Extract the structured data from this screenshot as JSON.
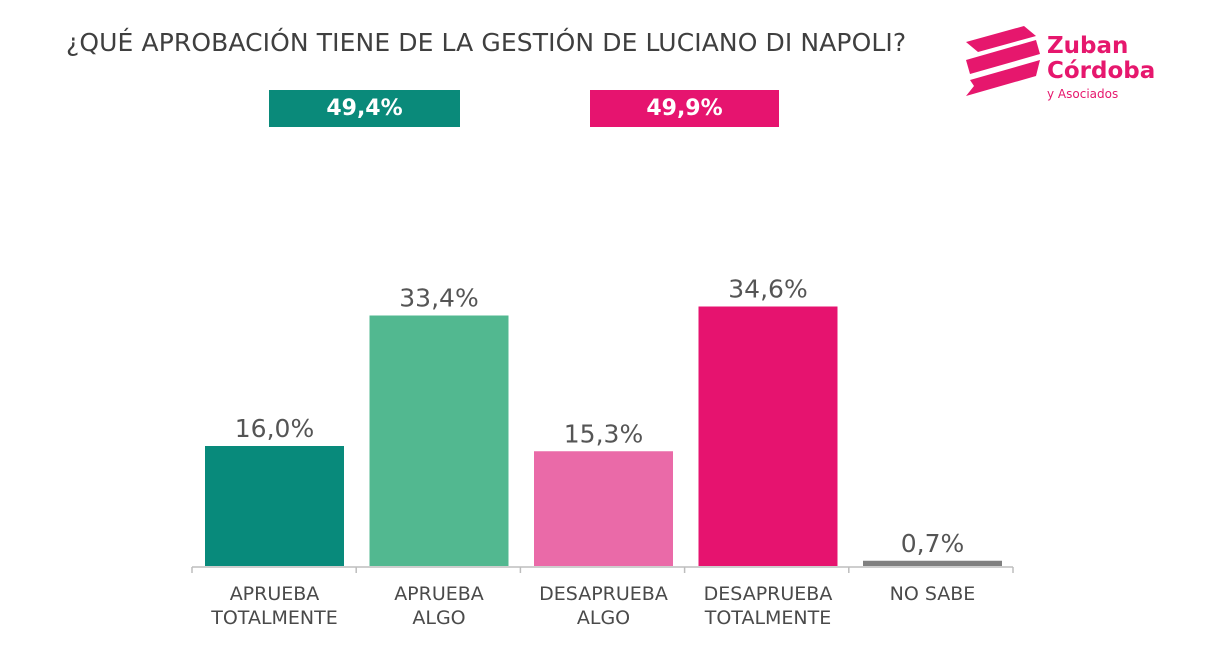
{
  "title": "¿QUÉ APROBACIÓN TIENE DE LA GESTIÓN DE LUCIANO DI NAPOLI?",
  "summary": {
    "approve_total": "49,4%",
    "disapprove_total": "49,9%",
    "approve_color": "#0a8a7a",
    "disapprove_color": "#e6146f"
  },
  "logo": {
    "line1": "Zuban",
    "line2": "Córdoba",
    "line3": "y Asociados",
    "color": "#e6176d"
  },
  "chart_data": {
    "type": "bar",
    "title": "¿QUÉ APROBACIÓN TIENE DE LA GESTIÓN DE LUCIANO DI NAPOLI?",
    "categories": [
      "APRUEBA\nTOTALMENTE",
      "APRUEBA\nALGO",
      "DESAPRUEBA\nALGO",
      "DESAPRUEBA\nTOTALMENTE",
      "NO SABE"
    ],
    "values": [
      16.0,
      33.4,
      15.3,
      34.6,
      0.7
    ],
    "value_labels": [
      "16,0%",
      "33,4%",
      "15,3%",
      "34,6%",
      "0,7%"
    ],
    "colors": [
      "#088a7b",
      "#52b890",
      "#ea6aa8",
      "#e6136f",
      "#808080"
    ],
    "xlabel": "",
    "ylabel": "",
    "ylim": [
      0,
      40
    ],
    "grid": false,
    "legend": "none"
  }
}
